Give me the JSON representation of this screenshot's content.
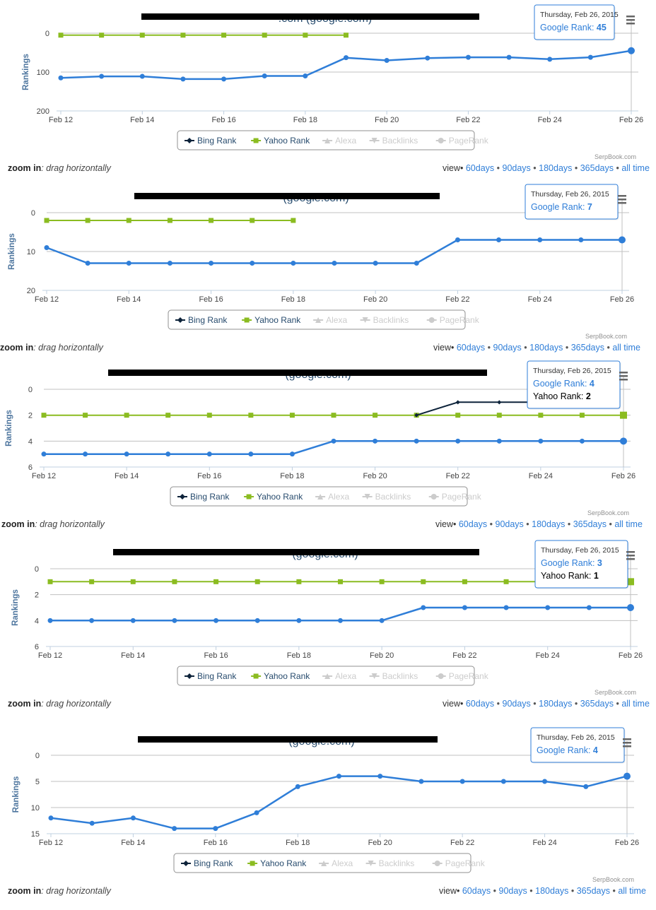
{
  "common": {
    "zoom_label": "zoom in",
    "zoom_hint": ": drag horizontally",
    "view_label": "view",
    "view_links": [
      "60days",
      "90days",
      "180days",
      "365days",
      "all time"
    ],
    "credit": "SerpBook.com",
    "y_axis_title": "Rankings",
    "legend": [
      {
        "label": "Bing Rank",
        "symbol": "diamond",
        "color": "#0d233a",
        "enabled": true
      },
      {
        "label": "Yahoo Rank",
        "symbol": "square",
        "color": "#8bbc21",
        "enabled": true
      },
      {
        "label": "Alexa",
        "symbol": "triangle",
        "color": "#cccccc",
        "enabled": false
      },
      {
        "label": "Backlinks",
        "symbol": "triangle-down",
        "color": "#cccccc",
        "enabled": false
      },
      {
        "label": "PageRank",
        "symbol": "circle",
        "color": "#cccccc",
        "enabled": false
      }
    ],
    "x_tick_labels": [
      "Feb 12",
      "Feb 14",
      "Feb 16",
      "Feb 18",
      "Feb 20",
      "Feb 22",
      "Feb 24",
      "Feb 26"
    ],
    "colors": {
      "google": "#2f7ed8",
      "bing": "#0d233a",
      "yahoo": "#8bbc21",
      "link": "#2f7ed8"
    }
  },
  "chart_data": [
    {
      "type": "line",
      "title_visible": ".com",
      "title_suffix": "(google.com)",
      "x": [
        "Feb 12",
        "Feb 13",
        "Feb 14",
        "Feb 15",
        "Feb 16",
        "Feb 17",
        "Feb 18",
        "Feb 19",
        "Feb 20",
        "Feb 21",
        "Feb 22",
        "Feb 23",
        "Feb 24",
        "Feb 25",
        "Feb 26"
      ],
      "ylabel": "Rankings",
      "yticks": [
        0,
        100,
        200
      ],
      "ylim": [
        0,
        200
      ],
      "y_reversed": true,
      "series": [
        {
          "name": "Google Rank",
          "color": "#2f7ed8",
          "values": [
            115,
            111,
            111,
            118,
            118,
            110,
            110,
            63,
            70,
            64,
            62,
            62,
            67,
            62,
            45
          ]
        },
        {
          "name": "Bing Rank",
          "color": "#0d233a",
          "values": [
            null,
            null,
            null,
            null,
            null,
            null,
            null,
            null,
            null,
            null,
            null,
            null,
            null,
            null,
            null
          ]
        },
        {
          "name": "Yahoo Rank",
          "color": "#8bbc21",
          "values": [
            5,
            5,
            5,
            5,
            5,
            5,
            5,
            5,
            null,
            null,
            null,
            null,
            null,
            null,
            null
          ]
        }
      ],
      "tooltip": {
        "date": "Thursday, Feb 26, 2015",
        "rows": [
          {
            "label": "Google Rank",
            "value": "45",
            "color": "#2f7ed8"
          }
        ]
      }
    },
    {
      "type": "line",
      "title_visible": "(google.com)",
      "x": [
        "Feb 12",
        "Feb 13",
        "Feb 14",
        "Feb 15",
        "Feb 16",
        "Feb 17",
        "Feb 18",
        "Feb 19",
        "Feb 20",
        "Feb 21",
        "Feb 22",
        "Feb 23",
        "Feb 24",
        "Feb 25",
        "Feb 26"
      ],
      "ylabel": "Rankings",
      "yticks": [
        0,
        10,
        20
      ],
      "ylim": [
        0,
        20
      ],
      "y_reversed": true,
      "series": [
        {
          "name": "Google Rank",
          "color": "#2f7ed8",
          "values": [
            9,
            13,
            13,
            13,
            13,
            13,
            13,
            13,
            13,
            13,
            7,
            7,
            7,
            7,
            7
          ]
        },
        {
          "name": "Bing Rank",
          "color": "#0d233a",
          "values": [
            null,
            null,
            null,
            null,
            null,
            null,
            null,
            null,
            null,
            null,
            null,
            null,
            null,
            null,
            null
          ]
        },
        {
          "name": "Yahoo Rank",
          "color": "#8bbc21",
          "values": [
            2,
            2,
            2,
            2,
            2,
            2,
            2,
            null,
            null,
            null,
            null,
            null,
            null,
            null,
            null
          ]
        }
      ],
      "tooltip": {
        "date": "Thursday, Feb 26, 2015",
        "rows": [
          {
            "label": "Google Rank",
            "value": "7",
            "color": "#2f7ed8"
          }
        ]
      }
    },
    {
      "type": "line",
      "title_visible": "(google.com)",
      "x": [
        "Feb 12",
        "Feb 13",
        "Feb 14",
        "Feb 15",
        "Feb 16",
        "Feb 17",
        "Feb 18",
        "Feb 19",
        "Feb 20",
        "Feb 21",
        "Feb 22",
        "Feb 23",
        "Feb 24",
        "Feb 25",
        "Feb 26"
      ],
      "ylabel": "Rankings",
      "yticks": [
        0,
        2,
        4,
        6
      ],
      "ylim": [
        0,
        6
      ],
      "y_reversed": true,
      "series": [
        {
          "name": "Google Rank",
          "color": "#2f7ed8",
          "values": [
            5,
            5,
            5,
            5,
            5,
            5,
            5,
            4,
            4,
            4,
            4,
            4,
            4,
            4,
            4
          ]
        },
        {
          "name": "Bing Rank",
          "color": "#0d233a",
          "values": [
            null,
            null,
            null,
            null,
            null,
            null,
            null,
            null,
            null,
            2,
            1,
            1,
            1,
            null,
            null
          ]
        },
        {
          "name": "Yahoo Rank",
          "color": "#8bbc21",
          "values": [
            2,
            2,
            2,
            2,
            2,
            2,
            2,
            2,
            2,
            2,
            2,
            2,
            2,
            2,
            2
          ]
        }
      ],
      "tooltip": {
        "date": "Thursday, Feb 26, 2015",
        "rows": [
          {
            "label": "Google Rank",
            "value": "4",
            "color": "#2f7ed8"
          },
          {
            "label": "Yahoo Rank",
            "value": "2",
            "color": "#000000"
          }
        ]
      }
    },
    {
      "type": "line",
      "title_visible": "(google.com)",
      "x": [
        "Feb 12",
        "Feb 13",
        "Feb 14",
        "Feb 15",
        "Feb 16",
        "Feb 17",
        "Feb 18",
        "Feb 19",
        "Feb 20",
        "Feb 21",
        "Feb 22",
        "Feb 23",
        "Feb 24",
        "Feb 25",
        "Feb 26"
      ],
      "ylabel": "Rankings",
      "yticks": [
        0,
        2,
        4,
        6
      ],
      "ylim": [
        0,
        6
      ],
      "y_reversed": true,
      "series": [
        {
          "name": "Google Rank",
          "color": "#2f7ed8",
          "values": [
            4,
            4,
            4,
            4,
            4,
            4,
            4,
            4,
            4,
            3,
            3,
            3,
            3,
            3,
            3
          ]
        },
        {
          "name": "Bing Rank",
          "color": "#0d233a",
          "values": [
            null,
            null,
            null,
            null,
            null,
            null,
            null,
            null,
            null,
            null,
            null,
            null,
            null,
            null,
            null
          ]
        },
        {
          "name": "Yahoo Rank",
          "color": "#8bbc21",
          "values": [
            1,
            1,
            1,
            1,
            1,
            1,
            1,
            1,
            1,
            1,
            1,
            1,
            1,
            1,
            1
          ]
        }
      ],
      "tooltip": {
        "date": "Thursday, Feb 26, 2015",
        "rows": [
          {
            "label": "Google Rank",
            "value": "3",
            "color": "#2f7ed8"
          },
          {
            "label": "Yahoo Rank",
            "value": "1",
            "color": "#000000"
          }
        ]
      }
    },
    {
      "type": "line",
      "title_visible": "(google.com)",
      "x": [
        "Feb 12",
        "Feb 13",
        "Feb 14",
        "Feb 15",
        "Feb 16",
        "Feb 17",
        "Feb 18",
        "Feb 19",
        "Feb 20",
        "Feb 21",
        "Feb 22",
        "Feb 23",
        "Feb 24",
        "Feb 25",
        "Feb 26"
      ],
      "ylabel": "Rankings",
      "yticks": [
        0,
        5,
        10,
        15
      ],
      "ylim": [
        0,
        15
      ],
      "y_reversed": true,
      "series": [
        {
          "name": "Google Rank",
          "color": "#2f7ed8",
          "values": [
            12,
            13,
            12,
            14,
            14,
            11,
            6,
            4,
            4,
            5,
            5,
            5,
            5,
            6,
            4
          ]
        },
        {
          "name": "Bing Rank",
          "color": "#0d233a",
          "values": [
            null,
            null,
            null,
            null,
            null,
            null,
            null,
            null,
            null,
            null,
            null,
            null,
            null,
            null,
            null
          ]
        },
        {
          "name": "Yahoo Rank",
          "color": "#8bbc21",
          "values": [
            null,
            null,
            null,
            null,
            null,
            null,
            null,
            null,
            null,
            null,
            null,
            null,
            null,
            null,
            null
          ]
        }
      ],
      "tooltip": {
        "date": "Thursday, Feb 26, 2015",
        "rows": [
          {
            "label": "Google Rank",
            "value": "4",
            "color": "#2f7ed8"
          }
        ]
      }
    }
  ]
}
